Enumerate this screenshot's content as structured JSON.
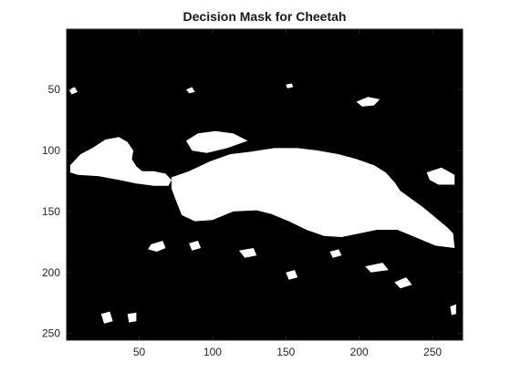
{
  "chart_data": {
    "type": "heatmap",
    "title": "Decision Mask for Cheetah",
    "xlabel": "",
    "ylabel": "",
    "colormap": [
      "#000000",
      "#ffffff"
    ],
    "xlim": [
      0.5,
      270.5
    ],
    "ylim": [
      0.5,
      255.5
    ],
    "y_direction": "reverse",
    "x_ticks": [
      50,
      100,
      150,
      200,
      250
    ],
    "y_ticks": [
      50,
      100,
      150,
      200,
      250
    ],
    "x_tick_labels": [
      "50",
      "100",
      "150",
      "200",
      "250"
    ],
    "y_tick_labels": [
      "50",
      "100",
      "150",
      "200",
      "250"
    ],
    "grid": false,
    "mask_regions": [
      {
        "name": "cheetah-body",
        "points": [
          [
            72,
            122
          ],
          [
            84,
            117
          ],
          [
            98,
            109
          ],
          [
            112,
            103
          ],
          [
            126,
            101
          ],
          [
            142,
            98
          ],
          [
            158,
            98
          ],
          [
            172,
            100
          ],
          [
            186,
            103
          ],
          [
            198,
            107
          ],
          [
            210,
            112
          ],
          [
            218,
            118
          ],
          [
            224,
            126
          ],
          [
            228,
            133
          ],
          [
            236,
            140
          ],
          [
            244,
            147
          ],
          [
            252,
            155
          ],
          [
            260,
            163
          ],
          [
            264,
            168
          ],
          [
            265,
            180
          ],
          [
            252,
            178
          ],
          [
            238,
            171
          ],
          [
            226,
            165
          ],
          [
            212,
            165
          ],
          [
            200,
            168
          ],
          [
            188,
            171
          ],
          [
            176,
            170
          ],
          [
            164,
            165
          ],
          [
            152,
            158
          ],
          [
            140,
            152
          ],
          [
            130,
            149
          ],
          [
            114,
            150
          ],
          [
            100,
            157
          ],
          [
            88,
            158
          ],
          [
            79,
            153
          ],
          [
            75,
            141
          ],
          [
            72,
            131
          ]
        ]
      },
      {
        "name": "cheetah-head",
        "points": [
          [
            3,
            112
          ],
          [
            10,
            103
          ],
          [
            18,
            98
          ],
          [
            27,
            91
          ],
          [
            36,
            89
          ],
          [
            42,
            93
          ],
          [
            46,
            100
          ],
          [
            45,
            107
          ],
          [
            48,
            113
          ],
          [
            52,
            117
          ],
          [
            60,
            117
          ],
          [
            68,
            119
          ],
          [
            72,
            124
          ],
          [
            70,
            129
          ],
          [
            60,
            129
          ],
          [
            48,
            127
          ],
          [
            36,
            124
          ],
          [
            22,
            121
          ],
          [
            8,
            120
          ],
          [
            3,
            118
          ]
        ]
      },
      {
        "name": "upper-back-fringe",
        "points": [
          [
            82,
            92
          ],
          [
            90,
            86
          ],
          [
            102,
            84
          ],
          [
            114,
            86
          ],
          [
            124,
            92
          ],
          [
            110,
            98
          ],
          [
            96,
            102
          ],
          [
            86,
            100
          ]
        ]
      },
      {
        "name": "front-leg-patch",
        "points": [
          [
            206,
            125
          ],
          [
            214,
            121
          ],
          [
            220,
            127
          ],
          [
            218,
            138
          ],
          [
            212,
            141
          ],
          [
            206,
            136
          ]
        ]
      },
      {
        "name": "right-edge-blob",
        "points": [
          [
            246,
            118
          ],
          [
            256,
            114
          ],
          [
            265,
            120
          ],
          [
            265,
            128
          ],
          [
            254,
            128
          ],
          [
            248,
            124
          ]
        ]
      },
      {
        "name": "speck-1",
        "points": [
          [
            198,
            60
          ],
          [
            206,
            56
          ],
          [
            214,
            58
          ],
          [
            210,
            63
          ],
          [
            202,
            64
          ]
        ]
      },
      {
        "name": "speck-2",
        "points": [
          [
            2,
            50
          ],
          [
            6,
            48
          ],
          [
            8,
            52
          ],
          [
            4,
            54
          ]
        ]
      },
      {
        "name": "speck-3",
        "points": [
          [
            58,
            177
          ],
          [
            66,
            174
          ],
          [
            68,
            180
          ],
          [
            62,
            183
          ],
          [
            56,
            181
          ]
        ]
      },
      {
        "name": "speck-4",
        "points": [
          [
            118,
            182
          ],
          [
            128,
            180
          ],
          [
            130,
            186
          ],
          [
            122,
            188
          ]
        ]
      },
      {
        "name": "speck-5",
        "points": [
          [
            24,
            234
          ],
          [
            30,
            232
          ],
          [
            32,
            240
          ],
          [
            26,
            242
          ]
        ]
      },
      {
        "name": "speck-6",
        "points": [
          [
            42,
            234
          ],
          [
            48,
            233
          ],
          [
            48,
            240
          ],
          [
            43,
            241
          ]
        ]
      },
      {
        "name": "speck-7",
        "points": [
          [
            180,
            183
          ],
          [
            186,
            181
          ],
          [
            188,
            186
          ],
          [
            182,
            188
          ]
        ]
      },
      {
        "name": "speck-8",
        "points": [
          [
            204,
            195
          ],
          [
            216,
            192
          ],
          [
            220,
            198
          ],
          [
            208,
            200
          ]
        ]
      },
      {
        "name": "speck-9",
        "points": [
          [
            224,
            208
          ],
          [
            232,
            204
          ],
          [
            236,
            210
          ],
          [
            228,
            213
          ]
        ]
      },
      {
        "name": "speck-10",
        "points": [
          [
            150,
            200
          ],
          [
            156,
            198
          ],
          [
            158,
            204
          ],
          [
            152,
            206
          ]
        ]
      },
      {
        "name": "speck-11",
        "points": [
          [
            262,
            228
          ],
          [
            266,
            226
          ],
          [
            266,
            234
          ],
          [
            263,
            235
          ]
        ]
      },
      {
        "name": "speck-12",
        "points": [
          [
            84,
            176
          ],
          [
            90,
            174
          ],
          [
            92,
            180
          ],
          [
            86,
            182
          ]
        ]
      },
      {
        "name": "speck-13",
        "points": [
          [
            150,
            46
          ],
          [
            154,
            45
          ],
          [
            155,
            48
          ],
          [
            151,
            49
          ]
        ]
      },
      {
        "name": "speck-14",
        "points": [
          [
            82,
            50
          ],
          [
            86,
            48
          ],
          [
            88,
            52
          ],
          [
            84,
            53
          ]
        ]
      }
    ]
  }
}
